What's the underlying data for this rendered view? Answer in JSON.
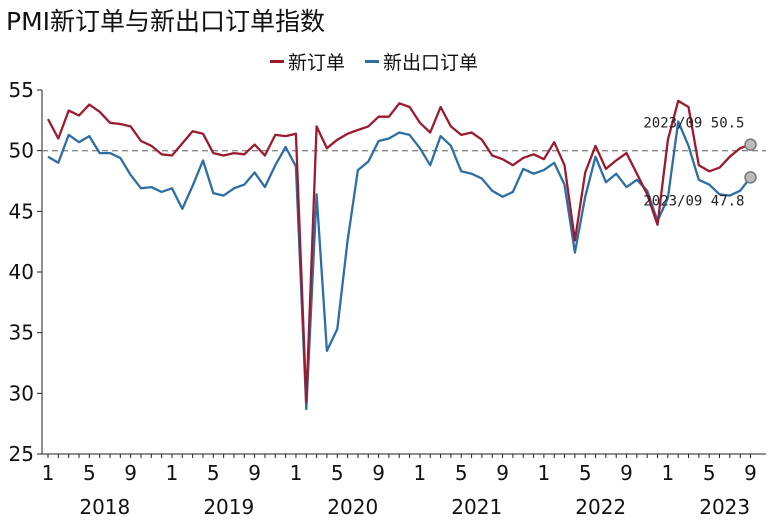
{
  "chart_data": {
    "type": "line",
    "title": "PMI新订单与新出口订单指数",
    "xlabel": "",
    "ylabel": "",
    "ylim": [
      25,
      55
    ],
    "yticks": [
      25,
      30,
      35,
      40,
      45,
      50,
      55
    ],
    "reference_line": 50,
    "grid": false,
    "legend_position": "top",
    "month_tick_labels": [
      "1",
      "5",
      "9",
      "1",
      "5",
      "9",
      "1",
      "5",
      "9",
      "1",
      "5",
      "9",
      "1",
      "5",
      "9",
      "1",
      "5",
      "9"
    ],
    "year_labels": [
      "2018",
      "2019",
      "2020",
      "2021",
      "2022",
      "2023"
    ],
    "x": [
      "2018-01",
      "2018-02",
      "2018-03",
      "2018-04",
      "2018-05",
      "2018-06",
      "2018-07",
      "2018-08",
      "2018-09",
      "2018-10",
      "2018-11",
      "2018-12",
      "2019-01",
      "2019-02",
      "2019-03",
      "2019-04",
      "2019-05",
      "2019-06",
      "2019-07",
      "2019-08",
      "2019-09",
      "2019-10",
      "2019-11",
      "2019-12",
      "2020-01",
      "2020-02",
      "2020-03",
      "2020-04",
      "2020-05",
      "2020-06",
      "2020-07",
      "2020-08",
      "2020-09",
      "2020-10",
      "2020-11",
      "2020-12",
      "2021-01",
      "2021-02",
      "2021-03",
      "2021-04",
      "2021-05",
      "2021-06",
      "2021-07",
      "2021-08",
      "2021-09",
      "2021-10",
      "2021-11",
      "2021-12",
      "2022-01",
      "2022-02",
      "2022-03",
      "2022-04",
      "2022-05",
      "2022-06",
      "2022-07",
      "2022-08",
      "2022-09",
      "2022-10",
      "2022-11",
      "2022-12",
      "2023-01",
      "2023-02",
      "2023-03",
      "2023-04",
      "2023-05",
      "2023-06",
      "2023-07",
      "2023-08",
      "2023-09"
    ],
    "series": [
      {
        "name": "新订单",
        "color": "#9b1b30",
        "values": [
          52.6,
          51.0,
          53.3,
          52.9,
          53.8,
          53.2,
          52.3,
          52.2,
          52.0,
          50.8,
          50.4,
          49.7,
          49.6,
          50.6,
          51.6,
          51.4,
          49.8,
          49.6,
          49.8,
          49.7,
          50.5,
          49.6,
          51.3,
          51.2,
          51.4,
          29.3,
          52.0,
          50.2,
          50.9,
          51.4,
          51.7,
          52.0,
          52.8,
          52.8,
          53.9,
          53.6,
          52.3,
          51.5,
          53.6,
          52.0,
          51.3,
          51.5,
          50.9,
          49.6,
          49.3,
          48.8,
          49.4,
          49.7,
          49.3,
          50.7,
          48.8,
          42.6,
          48.2,
          50.4,
          48.5,
          49.2,
          49.8,
          48.1,
          46.4,
          43.9,
          50.9,
          54.1,
          53.6,
          48.8,
          48.3,
          48.6,
          49.5,
          50.2,
          50.5
        ]
      },
      {
        "name": "新出口订单",
        "color": "#2e6ea6",
        "values": [
          49.5,
          49.0,
          51.3,
          50.7,
          51.2,
          49.8,
          49.8,
          49.4,
          48.0,
          46.9,
          47.0,
          46.6,
          46.9,
          45.2,
          47.1,
          49.2,
          46.5,
          46.3,
          46.9,
          47.2,
          48.2,
          47.0,
          48.8,
          50.3,
          48.7,
          28.7,
          46.4,
          33.5,
          35.3,
          42.6,
          48.4,
          49.1,
          50.8,
          51.0,
          51.5,
          51.3,
          50.2,
          48.8,
          51.2,
          50.4,
          48.3,
          48.1,
          47.7,
          46.7,
          46.2,
          46.6,
          48.5,
          48.1,
          48.4,
          49.0,
          47.2,
          41.6,
          46.2,
          49.5,
          47.4,
          48.1,
          47.0,
          47.6,
          46.7,
          44.2,
          46.1,
          52.4,
          50.4,
          47.6,
          47.2,
          46.4,
          46.3,
          46.7,
          47.8
        ]
      }
    ],
    "annotations": [
      {
        "text": "2023/09  50.5",
        "series": "新订单",
        "x": "2023-09",
        "y": 50.5
      },
      {
        "text": "2023/09  47.8",
        "series": "新出口订单",
        "x": "2023-09",
        "y": 47.8
      }
    ]
  }
}
